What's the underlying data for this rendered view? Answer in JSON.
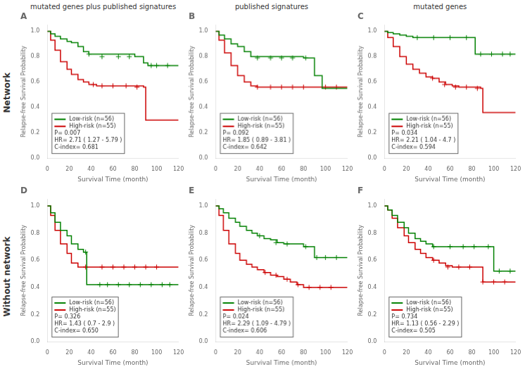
{
  "chart_data": [
    {
      "type": "step",
      "title": "A",
      "subtitle": "mutated genes plus published signatures",
      "row_label": "Network",
      "xlabel": "Survival Time (month)",
      "ylabel": "Relapse-free Survival Probability",
      "xlim": [
        0,
        120
      ],
      "xticks": [
        0,
        20,
        40,
        60,
        80,
        100,
        120
      ],
      "ylim": [
        0,
        1.05
      ],
      "yticks": [
        {
          "value": 0,
          "label": "0.0"
        },
        0.2,
        0.4,
        0.6,
        0.8,
        {
          "value": 1,
          "label": "1.0"
        }
      ],
      "grid": false,
      "legend": "lower left",
      "annotations": [
        "P= 0.007",
        "HR= 2.71 ( 1.27 - 5.79 )",
        "C-index= 0.681"
      ],
      "series": [
        {
          "name": "Low-risk (n=56)",
          "color": "#008000",
          "marker": "plus",
          "x": [
            0,
            3,
            7,
            12,
            18,
            22,
            28,
            33,
            38,
            80,
            88,
            92,
            120
          ],
          "values": [
            1,
            0.98,
            0.96,
            0.94,
            0.92,
            0.91,
            0.88,
            0.84,
            0.82,
            0.8,
            0.75,
            0.73,
            0.73
          ],
          "censor_x": [
            38,
            50,
            65,
            75,
            95,
            100,
            110
          ],
          "censor_values": [
            0.82,
            0.8,
            0.8,
            0.8,
            0.73,
            0.73,
            0.73
          ]
        },
        {
          "name": "High-risk (n=55)",
          "color": "#CC0000",
          "marker": "plus",
          "x": [
            0,
            3,
            7,
            12,
            18,
            22,
            28,
            33,
            38,
            45,
            88,
            90,
            120
          ],
          "values": [
            1,
            0.93,
            0.85,
            0.76,
            0.7,
            0.66,
            0.62,
            0.6,
            0.58,
            0.57,
            0.56,
            0.3,
            0.3
          ],
          "censor_x": [
            42,
            50,
            60,
            72,
            82
          ],
          "censor_values": [
            0.58,
            0.57,
            0.57,
            0.57,
            0.56
          ]
        }
      ]
    },
    {
      "type": "step",
      "title": "B",
      "subtitle": "published signatures",
      "xlabel": "Survival Time (month)",
      "ylabel": "Relapse-free Survival Probability",
      "xlim": [
        0,
        120
      ],
      "xticks": [
        0,
        20,
        40,
        60,
        80,
        100,
        120
      ],
      "ylim": [
        0,
        1.05
      ],
      "yticks": [
        {
          "value": 0,
          "label": "0.0"
        },
        0.2,
        0.4,
        0.6,
        0.8,
        {
          "value": 1,
          "label": "1.0"
        }
      ],
      "grid": false,
      "legend": "lower left",
      "annotations": [
        "P= 0.092",
        "HR= 1.85 ( 0.89 - 3.81 )",
        "C-index= 0.642"
      ],
      "series": [
        {
          "name": "Low-risk (n=56)",
          "color": "#008000",
          "marker": "plus",
          "x": [
            0,
            3,
            8,
            14,
            20,
            26,
            32,
            80,
            90,
            97,
            120
          ],
          "values": [
            1,
            0.97,
            0.94,
            0.9,
            0.88,
            0.84,
            0.8,
            0.79,
            0.65,
            0.55,
            0.55
          ],
          "censor_x": [
            38,
            50,
            60,
            70,
            82
          ],
          "censor_values": [
            0.79,
            0.79,
            0.79,
            0.79,
            0.79
          ]
        },
        {
          "name": "High-risk (n=55)",
          "color": "#CC0000",
          "marker": "plus",
          "x": [
            0,
            3,
            8,
            14,
            20,
            26,
            32,
            38,
            120
          ],
          "values": [
            1,
            0.93,
            0.83,
            0.73,
            0.65,
            0.6,
            0.57,
            0.56,
            0.56
          ],
          "censor_x": [
            38,
            50,
            60,
            70,
            80,
            100,
            110
          ],
          "censor_values": [
            0.56,
            0.56,
            0.56,
            0.56,
            0.56,
            0.56,
            0.56
          ]
        }
      ]
    },
    {
      "type": "step",
      "title": "C",
      "subtitle": "mutated genes",
      "xlabel": "Survival Time (month)",
      "ylabel": "Relapse-free Survival Probability",
      "xlim": [
        0,
        120
      ],
      "xticks": [
        0,
        20,
        40,
        60,
        80,
        100,
        120
      ],
      "ylim": [
        0,
        1.05
      ],
      "yticks": [
        {
          "value": 0,
          "label": "0.0"
        },
        0.2,
        0.4,
        0.6,
        0.8,
        {
          "value": 1,
          "label": "1.0"
        }
      ],
      "grid": false,
      "legend": "lower left",
      "annotations": [
        "P= 0.034",
        "HR= 2.21 ( 1.04 - 4.7 )",
        "C-index= 0.594"
      ],
      "series": [
        {
          "name": "Low-risk (n=56)",
          "color": "#008000",
          "marker": "plus",
          "x": [
            0,
            3,
            8,
            14,
            20,
            26,
            80,
            83,
            120
          ],
          "values": [
            1,
            0.99,
            0.98,
            0.97,
            0.96,
            0.95,
            0.95,
            0.82,
            0.82
          ],
          "censor_x": [
            30,
            45,
            60,
            75,
            88,
            98,
            108,
            115
          ],
          "censor_values": [
            0.95,
            0.95,
            0.95,
            0.95,
            0.82,
            0.82,
            0.82,
            0.82
          ]
        },
        {
          "name": "High-risk (n=55)",
          "color": "#CC0000",
          "marker": "plus",
          "x": [
            0,
            3,
            8,
            14,
            20,
            26,
            32,
            38,
            44,
            50,
            56,
            62,
            68,
            88,
            90,
            120
          ],
          "values": [
            1,
            0.95,
            0.88,
            0.8,
            0.74,
            0.7,
            0.67,
            0.64,
            0.63,
            0.6,
            0.58,
            0.57,
            0.56,
            0.55,
            0.36,
            0.36
          ],
          "censor_x": [
            44,
            55,
            65,
            75,
            85
          ],
          "censor_values": [
            0.63,
            0.58,
            0.56,
            0.56,
            0.55
          ]
        }
      ]
    },
    {
      "type": "step",
      "title": "D",
      "row_label": "Without network",
      "xlabel": "Survival Time (month)",
      "ylabel": "Relapse-free Survival Probability",
      "xlim": [
        0,
        120
      ],
      "xticks": [
        0,
        20,
        40,
        60,
        80,
        100,
        120
      ],
      "ylim": [
        0,
        1.05
      ],
      "yticks": [
        {
          "value": 0,
          "label": "0.0"
        },
        0.2,
        0.4,
        0.6,
        0.8,
        {
          "value": 1,
          "label": "1.0"
        }
      ],
      "grid": false,
      "legend": "lower left",
      "annotations": [
        "P= 0.326",
        "HR= 1.43 ( 0.7 - 2.9 )",
        "C-index= 0.650"
      ],
      "series": [
        {
          "name": "Low-risk (n=56)",
          "color": "#008000",
          "marker": "plus",
          "x": [
            0,
            3,
            7,
            12,
            18,
            22,
            28,
            33,
            36,
            120
          ],
          "values": [
            1,
            0.95,
            0.88,
            0.82,
            0.78,
            0.72,
            0.68,
            0.66,
            0.42,
            0.42
          ],
          "censor_x": [
            35,
            48,
            55,
            65,
            75,
            85,
            95,
            105,
            112
          ],
          "censor_values": [
            0.66,
            0.42,
            0.42,
            0.42,
            0.42,
            0.42,
            0.42,
            0.42,
            0.42
          ]
        },
        {
          "name": "High-risk (n=55)",
          "color": "#CC0000",
          "marker": "plus",
          "x": [
            0,
            3,
            7,
            12,
            18,
            22,
            28,
            120
          ],
          "values": [
            1,
            0.93,
            0.82,
            0.72,
            0.65,
            0.58,
            0.55,
            0.55
          ],
          "censor_x": [
            35,
            50,
            60,
            70,
            80,
            90,
            100
          ],
          "censor_values": [
            0.55,
            0.55,
            0.55,
            0.55,
            0.55,
            0.55,
            0.55
          ]
        }
      ]
    },
    {
      "type": "step",
      "title": "E",
      "xlabel": "Survival Time (month)",
      "ylabel": "Relapse-free Survival Probability",
      "xlim": [
        0,
        120
      ],
      "xticks": [
        0,
        20,
        40,
        60,
        80,
        100,
        120
      ],
      "ylim": [
        0,
        1.05
      ],
      "yticks": [
        {
          "value": 0,
          "label": "0.0"
        },
        0.2,
        0.4,
        0.6,
        0.8,
        {
          "value": 1,
          "label": "1.0"
        }
      ],
      "grid": false,
      "legend": "lower left",
      "annotations": [
        "P= 0.024",
        "HR= 2.29 ( 1.09 - 4.79 )",
        "C-index= 0.606"
      ],
      "series": [
        {
          "name": "Low-risk (n=56)",
          "color": "#008000",
          "marker": "plus",
          "x": [
            0,
            3,
            7,
            12,
            18,
            22,
            28,
            33,
            38,
            44,
            50,
            56,
            62,
            80,
            90,
            120
          ],
          "values": [
            1,
            0.98,
            0.95,
            0.91,
            0.88,
            0.85,
            0.82,
            0.8,
            0.78,
            0.76,
            0.75,
            0.73,
            0.72,
            0.7,
            0.62,
            0.62
          ],
          "censor_x": [
            40,
            55,
            65,
            82,
            92,
            100,
            110
          ],
          "censor_values": [
            0.78,
            0.73,
            0.72,
            0.7,
            0.62,
            0.62,
            0.62
          ]
        },
        {
          "name": "High-risk (n=55)",
          "color": "#CC0000",
          "marker": "plus",
          "x": [
            0,
            3,
            7,
            12,
            18,
            22,
            28,
            33,
            38,
            44,
            50,
            56,
            62,
            68,
            74,
            80,
            120
          ],
          "values": [
            1,
            0.93,
            0.82,
            0.72,
            0.65,
            0.6,
            0.57,
            0.55,
            0.53,
            0.51,
            0.49,
            0.48,
            0.46,
            0.44,
            0.42,
            0.4,
            0.4
          ],
          "censor_x": [
            45,
            55,
            65,
            75,
            85,
            95,
            105
          ],
          "censor_values": [
            0.51,
            0.49,
            0.46,
            0.42,
            0.4,
            0.4,
            0.4
          ]
        }
      ]
    },
    {
      "type": "step",
      "title": "F",
      "xlabel": "Survival Time (month)",
      "ylabel": "Relapse-free Survival Probability",
      "xlim": [
        0,
        120
      ],
      "xticks": [
        0,
        20,
        40,
        60,
        80,
        100,
        120
      ],
      "ylim": [
        0,
        1.05
      ],
      "yticks": [
        {
          "value": 0,
          "label": "0.0"
        },
        0.2,
        0.4,
        0.6,
        0.8,
        {
          "value": 1,
          "label": "1.0"
        }
      ],
      "grid": false,
      "legend": "lower left",
      "annotations": [
        "P= 0.734",
        "HR= 1.13 ( 0.56 - 2.29 )",
        "C-index= 0.505"
      ],
      "series": [
        {
          "name": "Low-risk (n=56)",
          "color": "#008000",
          "marker": "plus",
          "x": [
            0,
            3,
            7,
            12,
            18,
            22,
            28,
            33,
            38,
            44,
            97,
            100,
            120
          ],
          "values": [
            1,
            0.97,
            0.93,
            0.88,
            0.84,
            0.8,
            0.76,
            0.74,
            0.72,
            0.7,
            0.7,
            0.52,
            0.52
          ],
          "censor_x": [
            45,
            60,
            72,
            82,
            95,
            105,
            115
          ],
          "censor_values": [
            0.7,
            0.7,
            0.7,
            0.7,
            0.7,
            0.52,
            0.52
          ]
        },
        {
          "name": "High-risk (n=55)",
          "color": "#CC0000",
          "marker": "plus",
          "x": [
            0,
            3,
            7,
            12,
            18,
            22,
            28,
            33,
            38,
            44,
            50,
            56,
            62,
            88,
            90,
            120
          ],
          "values": [
            1,
            0.97,
            0.91,
            0.84,
            0.78,
            0.73,
            0.68,
            0.65,
            0.62,
            0.6,
            0.58,
            0.56,
            0.55,
            0.55,
            0.44,
            0.44
          ],
          "censor_x": [
            45,
            58,
            68,
            78,
            90,
            100,
            110
          ],
          "censor_values": [
            0.6,
            0.55,
            0.55,
            0.55,
            0.44,
            0.44,
            0.44
          ]
        }
      ]
    }
  ]
}
